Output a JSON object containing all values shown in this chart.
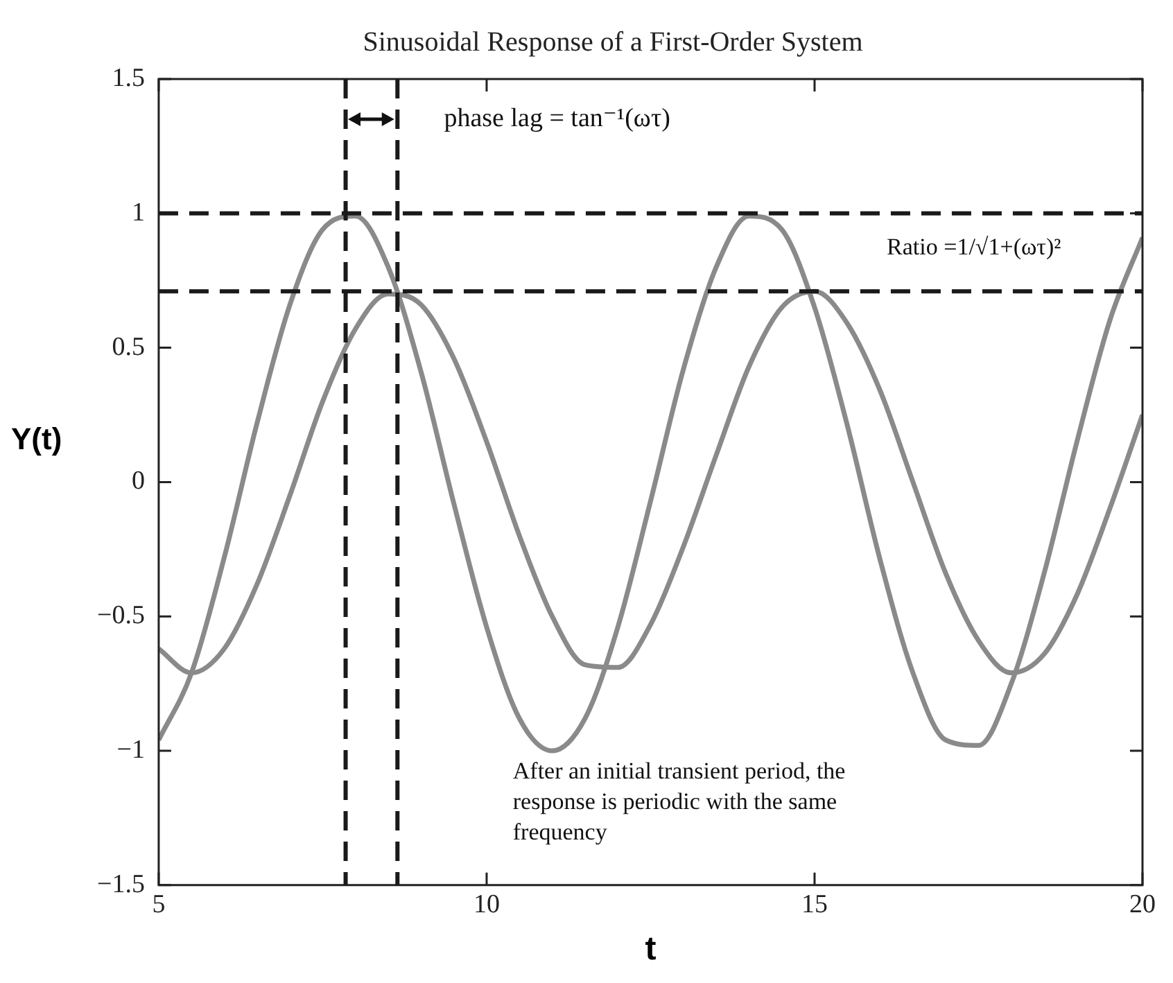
{
  "chart_data": {
    "type": "line",
    "title": "Sinusoidal Response of a First-Order System",
    "xlabel": "t",
    "ylabel": "Y(t)",
    "x": [
      5,
      5.5,
      6,
      6.5,
      7,
      7.5,
      8,
      8.5,
      9,
      9.5,
      10,
      10.5,
      11,
      11.5,
      12,
      12.5,
      13,
      13.5,
      14,
      14.5,
      15,
      15.5,
      16,
      16.5,
      17,
      17.5,
      18,
      18.5,
      19,
      19.5,
      20
    ],
    "series": [
      {
        "color": "#8a8a8a",
        "values": [
          -0.96,
          -0.71,
          -0.28,
          0.22,
          0.66,
          0.94,
          0.99,
          0.8,
          0.41,
          -0.08,
          -0.54,
          -0.88,
          -1.0,
          -0.88,
          -0.54,
          -0.07,
          0.42,
          0.8,
          0.99,
          0.94,
          0.65,
          0.21,
          -0.29,
          -0.71,
          -0.96,
          -0.98,
          -0.75,
          -0.34,
          0.15,
          0.6,
          0.91
        ]
      },
      {
        "color": "#8a8a8a",
        "values": [
          -0.62,
          -0.71,
          -0.62,
          -0.38,
          -0.05,
          0.3,
          0.57,
          0.7,
          0.66,
          0.46,
          0.15,
          -0.2,
          -0.5,
          -0.68,
          -0.69,
          -0.53,
          -0.24,
          0.1,
          0.43,
          0.65,
          0.71,
          0.59,
          0.34,
          0.0,
          -0.34,
          -0.59,
          -0.71,
          -0.64,
          -0.42,
          -0.1,
          0.25
        ]
      }
    ],
    "xlim": [
      5,
      20
    ],
    "xticks": [
      5,
      10,
      15,
      20
    ],
    "ylim": [
      -1.5,
      1.5
    ],
    "yticks": [
      {
        "value": -1.5,
        "label": "−1.5"
      },
      {
        "value": -1,
        "label": "−1"
      },
      {
        "value": -0.5,
        "label": "−0.5"
      },
      0,
      0.5,
      1,
      1.5
    ],
    "ref_lines": [
      {
        "axis": "y",
        "value": 1,
        "color": "#1a1a1a",
        "line_style": "dashed"
      },
      {
        "axis": "y",
        "value": 0.71,
        "color": "#1a1a1a",
        "line_style": "dashed"
      },
      {
        "axis": "x",
        "value": 7.85,
        "color": "#1a1a1a",
        "line_style": "dashed"
      },
      {
        "axis": "x",
        "value": 8.64,
        "color": "#1a1a1a",
        "line_style": "dashed"
      }
    ],
    "annotations": [
      "phase lag = tan⁻¹(ωτ)",
      "Ratio =1/√1+(ωτ)²",
      "After an initial transient period, the response is periodic with the same frequency"
    ],
    "grid": false,
    "legend": false,
    "marker": "none",
    "line_style": "solid"
  }
}
